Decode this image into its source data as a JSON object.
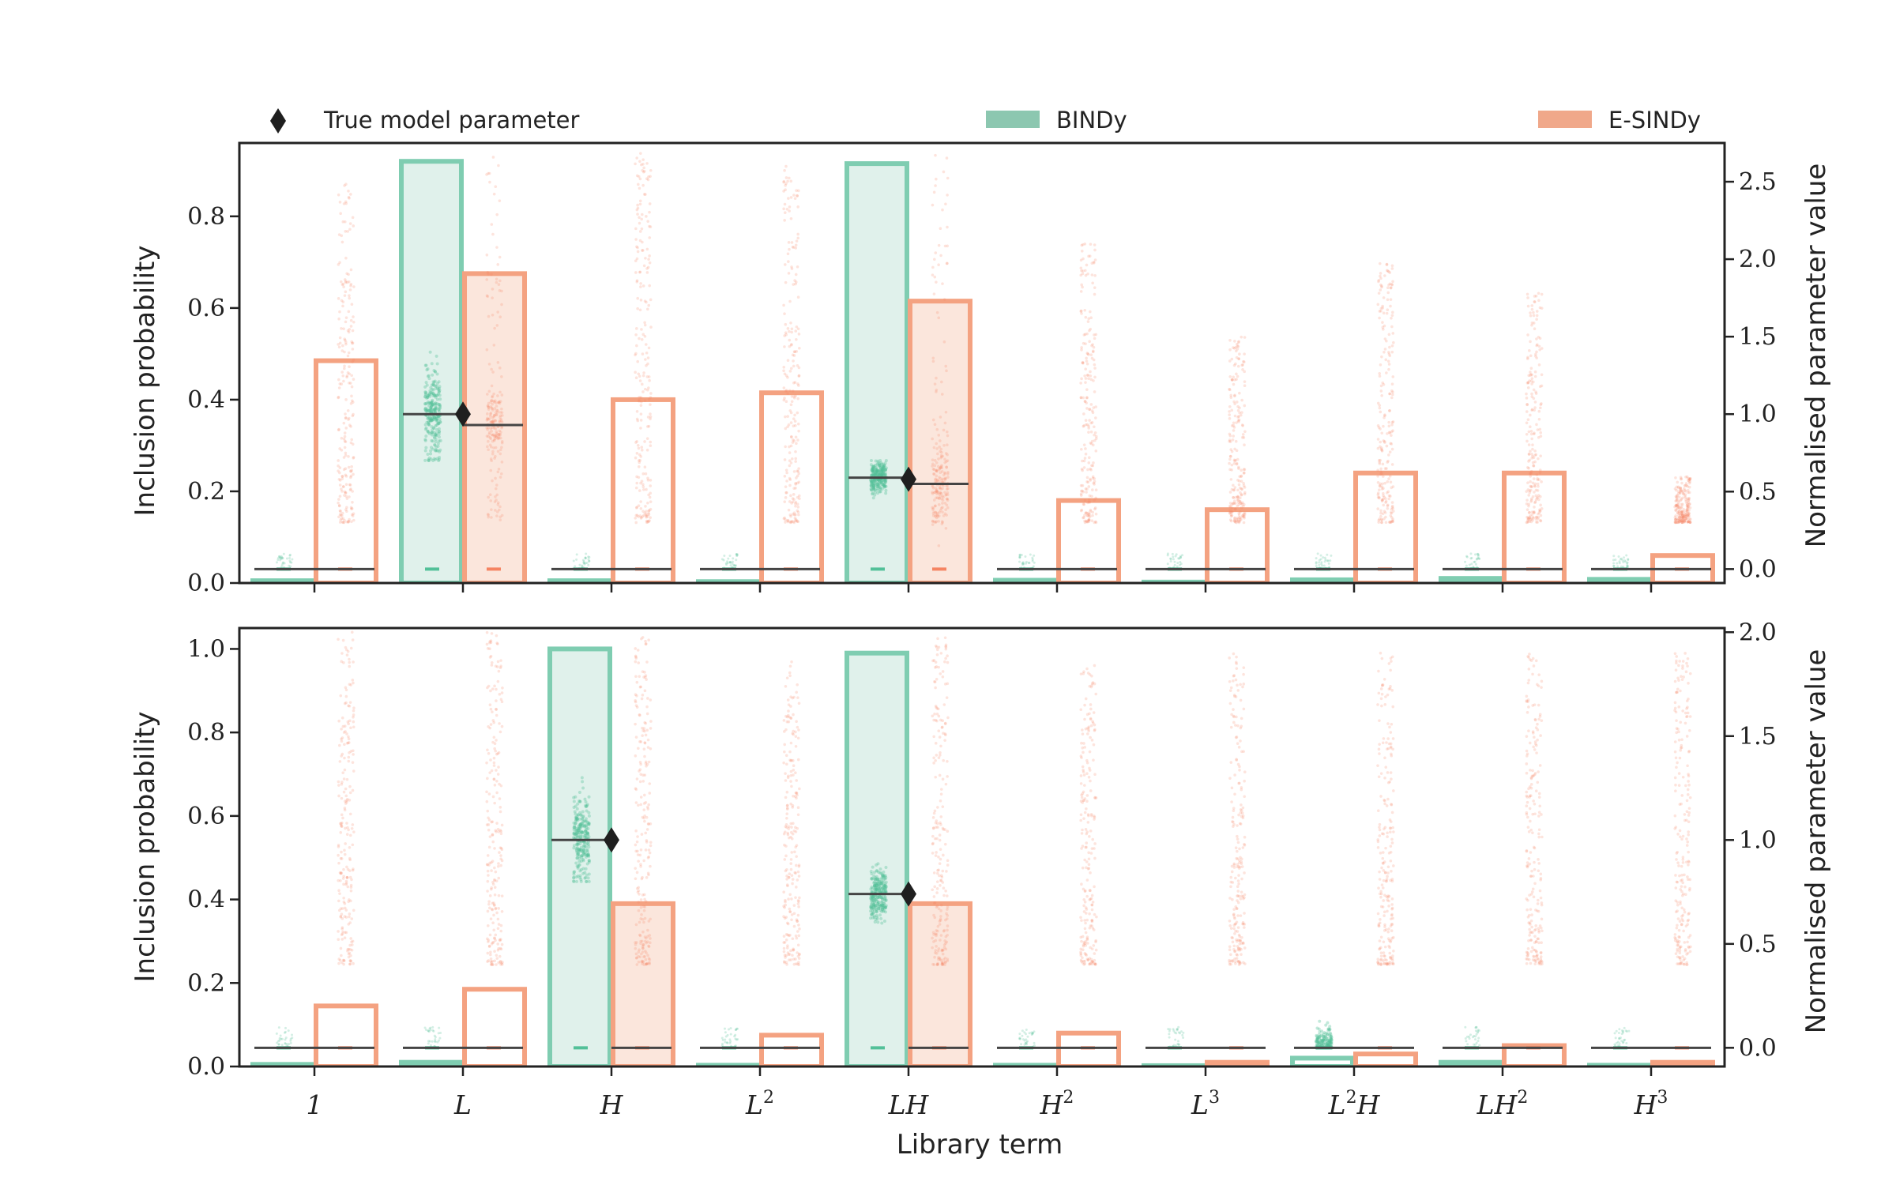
{
  "chart_data": {
    "type": "bar",
    "xlabel": "Library term",
    "terms": [
      {
        "base": "1",
        "sup": ""
      },
      {
        "base": "L",
        "sup": ""
      },
      {
        "base": "H",
        "sup": ""
      },
      {
        "base": "L",
        "sup": "2"
      },
      {
        "base": "LH",
        "sup": ""
      },
      {
        "base": "H",
        "sup": "2"
      },
      {
        "base": "L",
        "sup": "3"
      },
      {
        "base": "L",
        "sup": "2",
        "tail": "H"
      },
      {
        "base": "LH",
        "sup": "2"
      },
      {
        "base": "H",
        "sup": "3"
      }
    ],
    "legend": {
      "true_param": "True model parameter",
      "bindy": "BINDy",
      "esindy": "E-SINDy"
    },
    "colors": {
      "bindy_edge": "#7fcdb1",
      "bindy_fill": "#e0f1eb",
      "bindy_point": "#52c098",
      "bindy_legend": "#8cc7b0",
      "esindy_edge": "#f4a281",
      "esindy_fill": "#fbe6dc",
      "esindy_point": "#f58462",
      "esindy_legend": "#f0a88a",
      "axis": "#222222"
    },
    "panels": [
      {
        "ylabel": "Inclusion probability",
        "y2label": "Normalised parameter value",
        "ylim": [
          0,
          0.96
        ],
        "y_ticks": [
          "0.0",
          "0.2",
          "0.4",
          "0.6",
          "0.8"
        ],
        "y2lim": [
          -0.09,
          2.75
        ],
        "y2_ticks": [
          "0.0",
          "0.5",
          "1.0",
          "1.5",
          "2.0",
          "2.5"
        ],
        "series": [
          {
            "name": "BINDy",
            "values": [
              0.005,
              0.92,
              0.005,
              0.003,
              0.915,
              0.006,
              0.002,
              0.007,
              0.01,
              0.008
            ]
          },
          {
            "name": "E-SINDy",
            "values": [
              0.485,
              0.675,
              0.4,
              0.415,
              0.615,
              0.18,
              0.16,
              0.24,
              0.24,
              0.06
            ]
          }
        ],
        "true_values": [
          0,
          1.0,
          0,
          0,
          0.58,
          0,
          0,
          0,
          0,
          0
        ],
        "bindy_param_means": [
          0,
          1.0,
          0,
          0,
          0.59,
          0,
          0,
          0,
          0,
          0
        ],
        "esindy_param_means": [
          0,
          0.93,
          0,
          0,
          0.55,
          0,
          0,
          0,
          0,
          0
        ],
        "bindy_scatter": [
          [
            0,
            0.1
          ],
          [
            0.7,
            1.4
          ],
          [
            0,
            0.1
          ],
          [
            0,
            0.1
          ],
          [
            0.45,
            0.7
          ],
          [
            0,
            0.1
          ],
          [
            0,
            0.1
          ],
          [
            0,
            0.1
          ],
          [
            0,
            0.1
          ],
          [
            0,
            0.1
          ]
        ],
        "esindy_scatter": [
          [
            0.3,
            2.5
          ],
          [
            0.3,
            2.7
          ],
          [
            0.3,
            2.7
          ],
          [
            0.3,
            2.6
          ],
          [
            0.3,
            2.7
          ],
          [
            0.3,
            2.1
          ],
          [
            0.3,
            1.5
          ],
          [
            0.3,
            2.0
          ],
          [
            0.3,
            1.8
          ],
          [
            0.3,
            0.6
          ]
        ]
      },
      {
        "ylabel": "Inclusion probability",
        "y2label": "Normalised parameter value",
        "ylim": [
          0,
          1.05
        ],
        "y_ticks": [
          "0.0",
          "0.2",
          "0.4",
          "0.6",
          "0.8",
          "1.0"
        ],
        "y2lim": [
          -0.09,
          2.02
        ],
        "y2_ticks": [
          "0.0",
          "0.5",
          "1.0",
          "1.5",
          "2.0"
        ],
        "series": [
          {
            "name": "BINDy",
            "values": [
              0.005,
              0.01,
              1.0,
              0.003,
              0.99,
              0.003,
              0.002,
              0.02,
              0.01,
              0.003
            ]
          },
          {
            "name": "E-SINDy",
            "values": [
              0.145,
              0.185,
              0.39,
              0.075,
              0.39,
              0.08,
              0.01,
              0.03,
              0.05,
              0.01
            ]
          }
        ],
        "true_values": [
          0,
          0,
          1.0,
          0,
          0.74,
          0,
          0,
          0,
          0,
          0
        ],
        "bindy_param_means": [
          0,
          0,
          1.0,
          0,
          0.74,
          0,
          0,
          0,
          0,
          0
        ],
        "esindy_param_means": [
          0,
          0,
          0,
          0,
          0,
          0,
          0,
          0,
          0,
          0
        ],
        "bindy_scatter": [
          [
            0,
            0.1
          ],
          [
            0,
            0.1
          ],
          [
            0.8,
            1.3
          ],
          [
            0,
            0.1
          ],
          [
            0.6,
            0.9
          ],
          [
            0,
            0.1
          ],
          [
            0,
            0.1
          ],
          [
            0,
            0.2
          ],
          [
            0,
            0.1
          ],
          [
            0,
            0.1
          ]
        ],
        "esindy_scatter": [
          [
            0.4,
            2.0
          ],
          [
            0.4,
            2.0
          ],
          [
            0.4,
            2.0
          ],
          [
            0.4,
            1.9
          ],
          [
            0.4,
            2.0
          ],
          [
            0.4,
            1.9
          ],
          [
            0.4,
            1.9
          ],
          [
            0.4,
            1.9
          ],
          [
            0.4,
            1.9
          ],
          [
            0.4,
            1.9
          ]
        ]
      }
    ]
  }
}
